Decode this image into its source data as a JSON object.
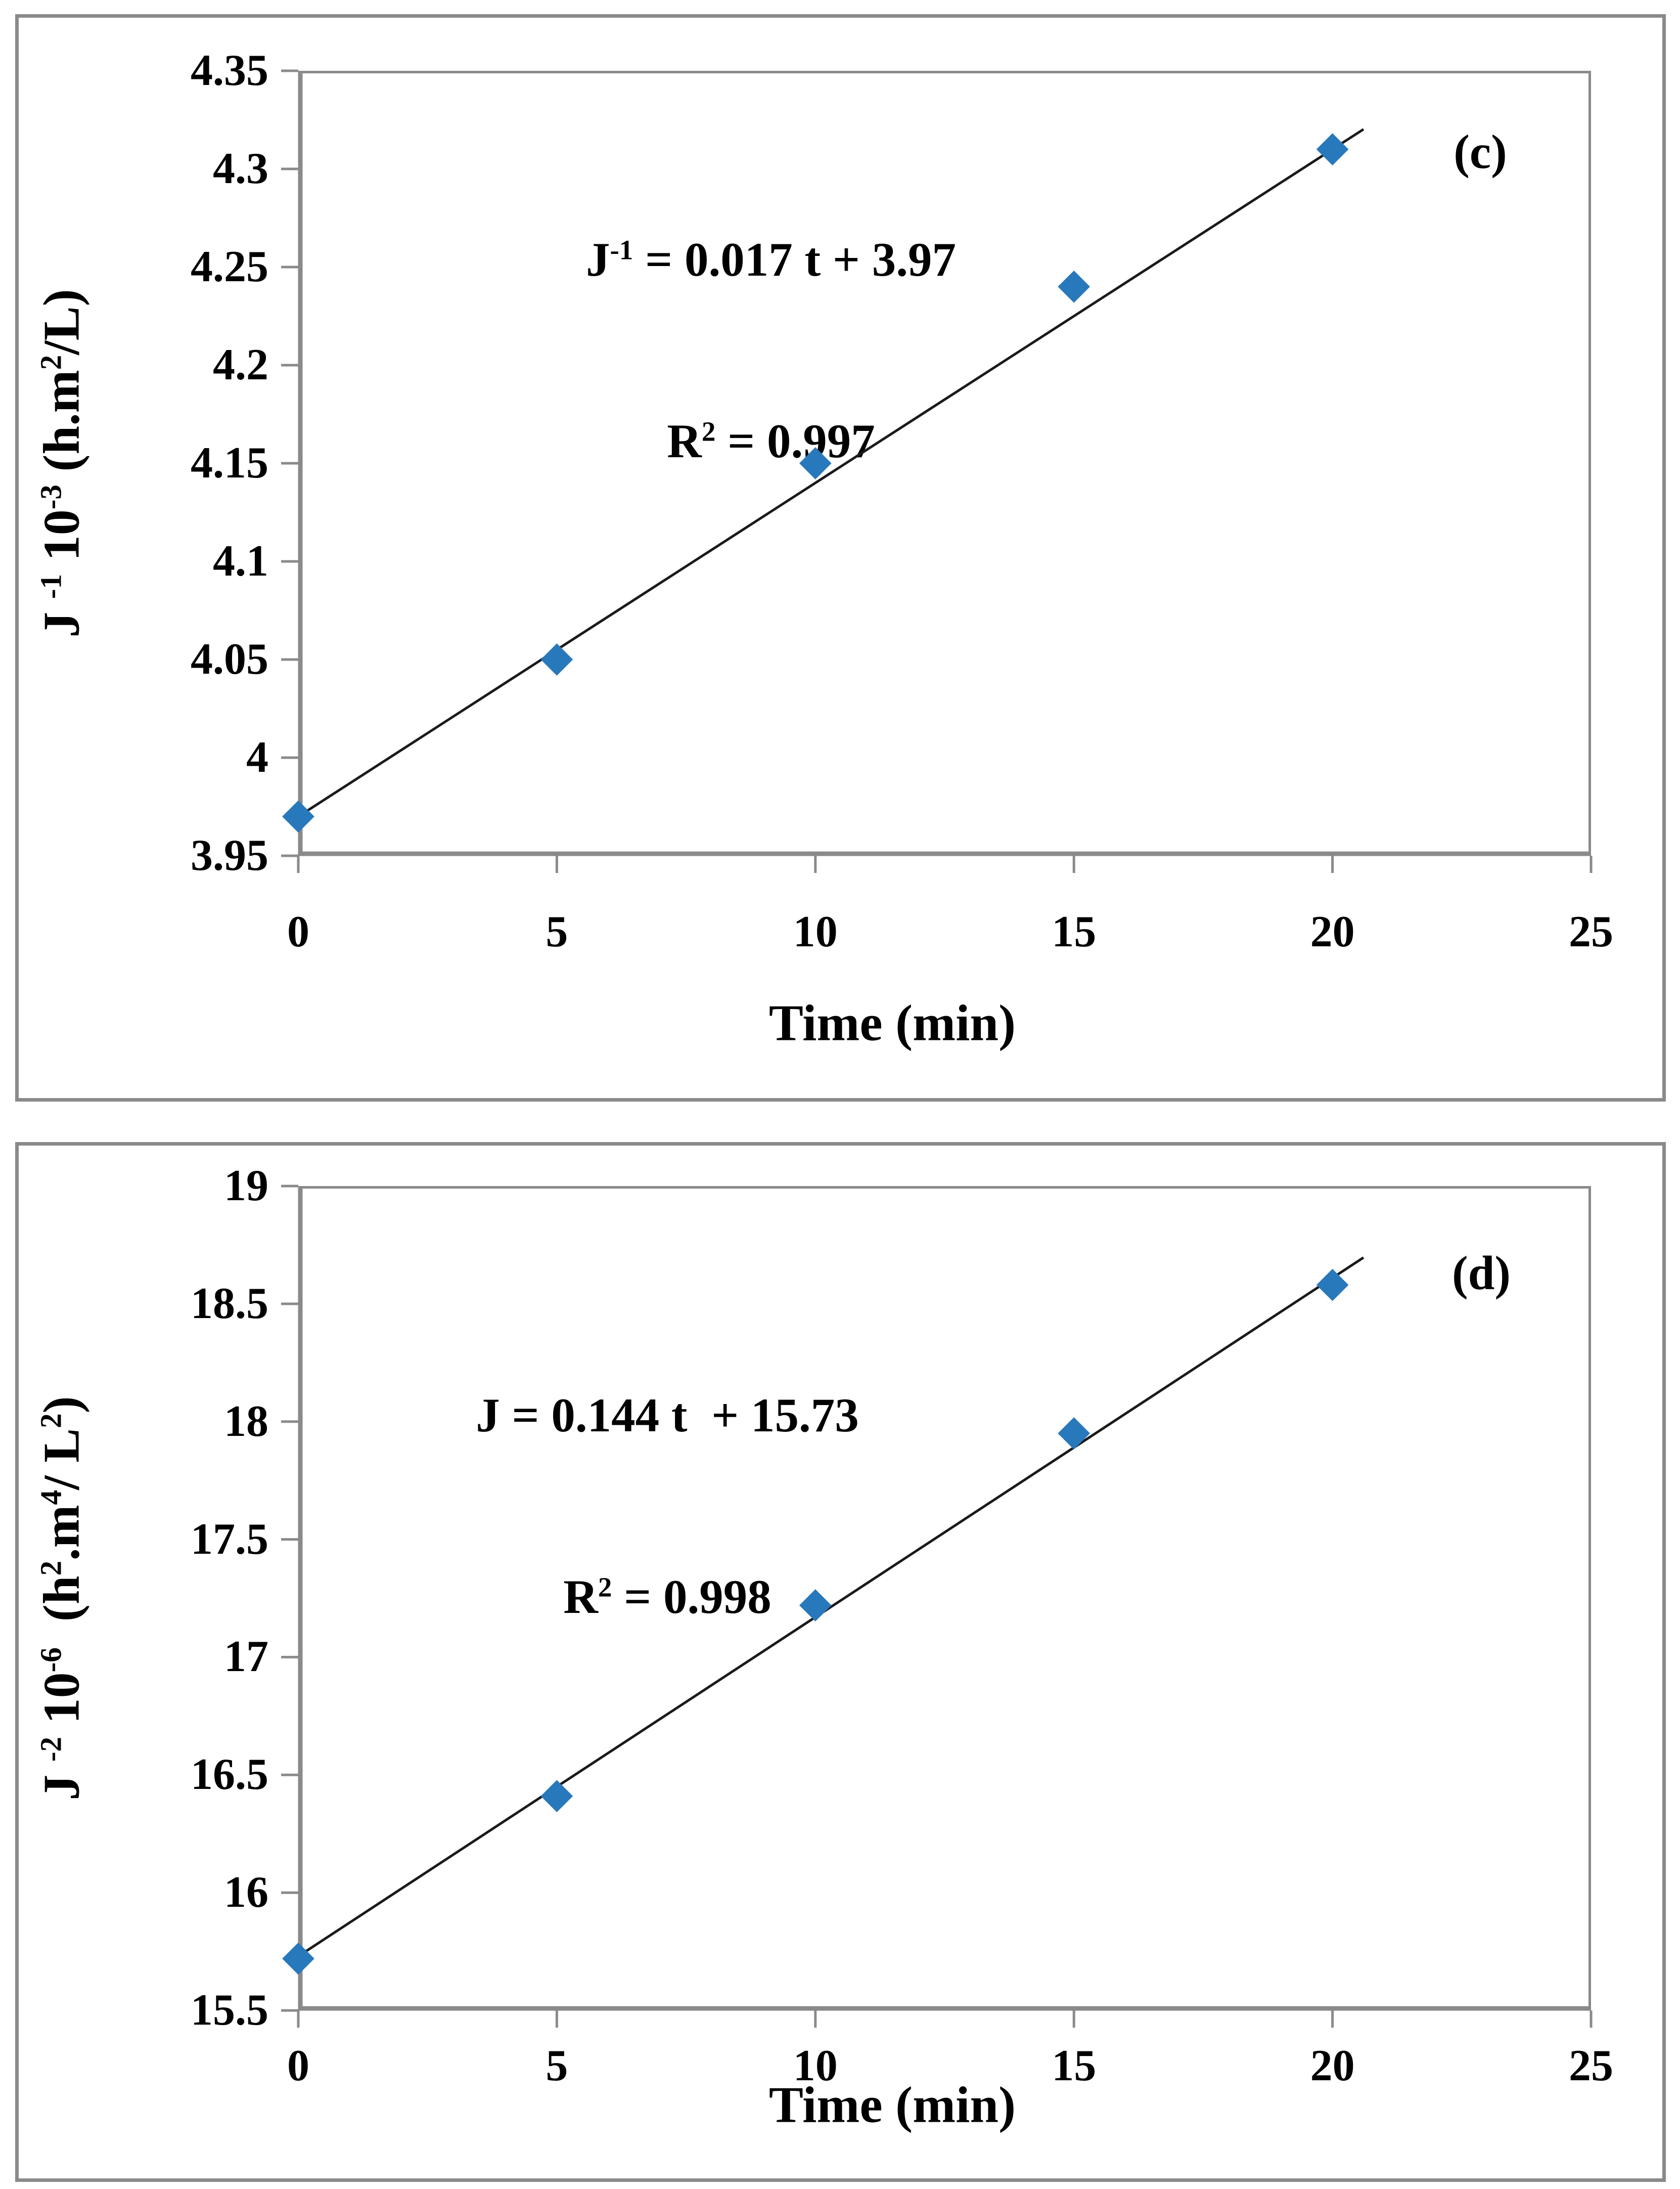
{
  "colors": {
    "marker": "#2878BC",
    "axis": "#8a8a8a",
    "panel_border": "#8a8a8a",
    "trendline": "#1a1a1a",
    "text": "#000000",
    "background": "#ffffff"
  },
  "figure": {
    "panels": [
      {
        "id": "c",
        "corner_label": "(c)",
        "x_title": "Time (min)",
        "equation_line1_parts": [
          {
            "t": "J"
          },
          {
            "t": "-1",
            "sup": true
          },
          {
            "t": " = 0.017 t + 3.97"
          }
        ],
        "equation_line2_parts": [
          {
            "t": "R"
          },
          {
            "t": "2",
            "sup": true
          },
          {
            "t": " = 0.997"
          }
        ],
        "y_title_parts": [
          {
            "t": "J "
          },
          {
            "t": "-1",
            "sup": true
          },
          {
            "t": " 10"
          },
          {
            "t": "-3",
            "sup": true
          },
          {
            "t": " (h.m"
          },
          {
            "t": "2",
            "sup": true
          },
          {
            "t": "/L)"
          }
        ],
        "x_tick_labels": [
          "0",
          "5",
          "10",
          "15",
          "20",
          "25"
        ],
        "y_tick_labels": [
          "4.35",
          "4.3",
          "4.25",
          "4.2",
          "4.15",
          "4.1",
          "4.05",
          "4",
          "3.95"
        ]
      },
      {
        "id": "d",
        "corner_label": "(d)",
        "x_title": "Time (min)",
        "equation_line1_parts": [
          {
            "t": "J = 0.144 t  + 15.73"
          }
        ],
        "equation_line2_parts": [
          {
            "t": "R"
          },
          {
            "t": "2",
            "sup": true
          },
          {
            "t": " = 0.998"
          }
        ],
        "y_title_parts": [
          {
            "t": "J "
          },
          {
            "t": "-2",
            "sup": true
          },
          {
            "t": " 10"
          },
          {
            "t": "-6",
            "sup": true
          },
          {
            "t": "  (h"
          },
          {
            "t": "2",
            "sup": true
          },
          {
            "t": ".m"
          },
          {
            "t": "4",
            "sup": true
          },
          {
            "t": "/ L"
          },
          {
            "t": "2",
            "sup": true
          },
          {
            "t": ")"
          }
        ],
        "x_tick_labels": [
          "0",
          "5",
          "10",
          "15",
          "20",
          "25"
        ],
        "y_tick_labels": [
          "19",
          "18.5",
          "18",
          "17.5",
          "17",
          "16.5",
          "16",
          "15.5"
        ]
      }
    ]
  },
  "chart_data": [
    {
      "type": "scatter",
      "panel": "(c)",
      "x": [
        0,
        5,
        10,
        15,
        20
      ],
      "y": [
        3.97,
        4.05,
        4.15,
        4.24,
        4.31
      ],
      "trendline": {
        "slope": 0.017,
        "intercept": 3.97,
        "x_start": 0,
        "x_end": 20.6,
        "r_squared": 0.997
      },
      "equation_text": "J⁻¹ = 0.017 t + 3.97",
      "r2_text": "R² = 0.997",
      "xlabel": "Time (min)",
      "ylabel": "J⁻¹ 10⁻³ (h.m²/L)",
      "xlim": [
        0,
        25
      ],
      "ylim": [
        3.95,
        4.35
      ],
      "x_ticks": [
        0,
        5,
        10,
        15,
        20,
        25
      ],
      "y_ticks": [
        3.95,
        4,
        4.05,
        4.1,
        4.15,
        4.2,
        4.25,
        4.3,
        4.35
      ],
      "grid": false,
      "legend": false,
      "marker": "diamond"
    },
    {
      "type": "scatter",
      "panel": "(d)",
      "x": [
        0,
        5,
        10,
        15,
        20
      ],
      "y": [
        15.72,
        16.41,
        17.22,
        17.95,
        18.58
      ],
      "trendline": {
        "slope": 0.144,
        "intercept": 15.73,
        "x_start": 0,
        "x_end": 20.6,
        "r_squared": 0.998
      },
      "equation_text": "J = 0.144 t  + 15.73",
      "r2_text": "R² = 0.998",
      "xlabel": "Time (min)",
      "ylabel": "J⁻² 10⁻⁶ (h².m⁴/ L²)",
      "xlim": [
        0,
        25
      ],
      "ylim": [
        15.5,
        19
      ],
      "x_ticks": [
        0,
        5,
        10,
        15,
        20,
        25
      ],
      "y_ticks": [
        15.5,
        16,
        16.5,
        17,
        17.5,
        18,
        18.5,
        19
      ],
      "grid": false,
      "legend": false,
      "marker": "diamond"
    }
  ]
}
